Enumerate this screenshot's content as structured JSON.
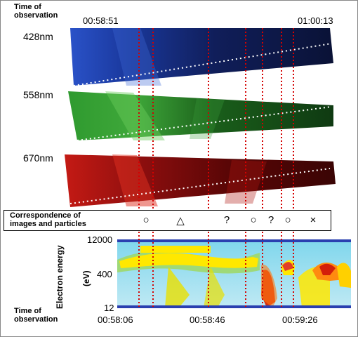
{
  "labels": {
    "time_obs_top": [
      "Time of",
      "observation"
    ],
    "time_start_top": "00:58:51",
    "time_end_top": "01:00:13",
    "wavelengths": [
      "428nm",
      "558nm",
      "670nm"
    ],
    "correspondence": [
      "Correspondence of",
      "images and particles"
    ],
    "y_axis": "Electron energy",
    "y_unit": "(eV)",
    "energy_ticks": [
      "12000",
      "400",
      "12"
    ],
    "time_obs_bottom": [
      "Time of",
      "observation"
    ],
    "time_ticks_bottom": [
      "00:58:06",
      "00:58:46",
      "00:59:26"
    ]
  },
  "correspondence_symbols": [
    "○",
    "△",
    "?",
    "○",
    "?",
    "○",
    "×"
  ],
  "colors": {
    "blue_band": "#1a3aa8",
    "green_band": "#1f7a1f",
    "red_band": "#9a1010",
    "marker_line": "#d40000",
    "spectrogram_bg": "#6fd0e8",
    "spectrogram_band": "#ffe600",
    "axis_bar": "#2a3fb0"
  }
}
